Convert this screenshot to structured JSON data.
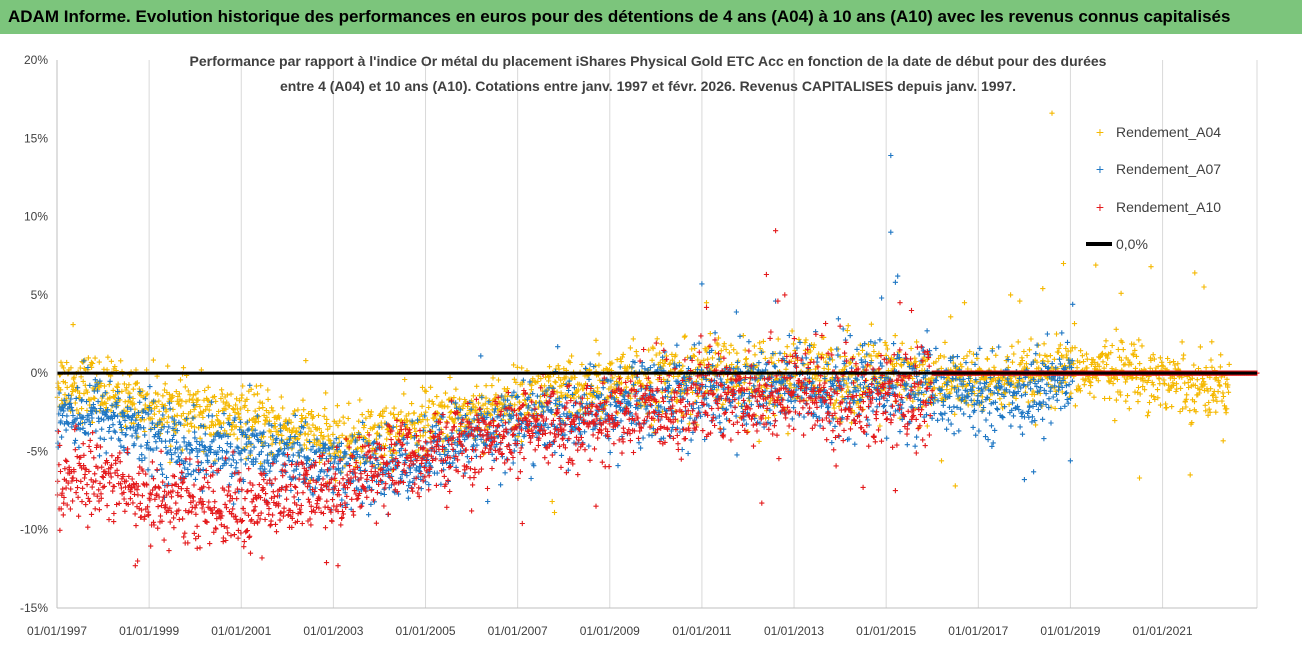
{
  "banner": {
    "text": "ADAM Informe. Evolution historique des performances en euros pour des détentions de 4 ans (A04) à 10 ans (A10) avec les revenus connus capitalisés"
  },
  "colors": {
    "banner_bg": "#7cc57c",
    "A04": "#f5b800",
    "A07": "#1f77c4",
    "A10": "#e41a1c",
    "zero_line": "#000000",
    "grid": "#d9d9d9"
  },
  "chart_data": {
    "type": "scatter",
    "title_lines": [
      "Performance par rapport à l'indice Or métal  du placement iShares Physical Gold ETC Acc en fonction de la date de début pour des durées",
      "entre 4 (A04) et 10 ans (A10). Cotations entre janv. 1997 et févr. 2026. Revenus CAPITALISES depuis janv. 1997."
    ],
    "xlabel": "",
    "ylabel": "",
    "xlim": [
      1997.0,
      2023.05
    ],
    "ylim": [
      -15,
      20
    ],
    "y_ticks": [
      20,
      15,
      10,
      5,
      0,
      -5,
      -10,
      -15
    ],
    "y_tick_labels": [
      "20%",
      "15%",
      "10%",
      "5%",
      "0%",
      "-5%",
      "-10%",
      "-15%"
    ],
    "x_ticks": [
      1997,
      1999,
      2001,
      2003,
      2005,
      2007,
      2009,
      2011,
      2013,
      2015,
      2017,
      2019,
      2021
    ],
    "x_tick_labels": [
      "01/01/1997",
      "01/01/1999",
      "01/01/2001",
      "01/01/2003",
      "01/01/2005",
      "01/01/2007",
      "01/01/2009",
      "01/01/2011",
      "01/01/2013",
      "01/01/2015",
      "01/01/2017",
      "01/01/2019",
      "01/01/2021"
    ],
    "grid": "vertical",
    "legend_position": "right",
    "legend": [
      "Rendement_A04",
      "Rendement_A07",
      "Rendement_A10",
      "0,0%"
    ],
    "series": [
      {
        "name": "Rendement_A04",
        "color": "#f5b800",
        "trend": [
          [
            1997.0,
            -0.5
          ],
          [
            1998.0,
            -1.0
          ],
          [
            1999.0,
            -2.0
          ],
          [
            2000.0,
            -2.5
          ],
          [
            2001.0,
            -3.0
          ],
          [
            2002.0,
            -3.5
          ],
          [
            2003.0,
            -4.5
          ],
          [
            2004.0,
            -4.0
          ],
          [
            2005.0,
            -3.2
          ],
          [
            2006.0,
            -2.5
          ],
          [
            2007.0,
            -1.8
          ],
          [
            2008.0,
            -1.2
          ],
          [
            2009.0,
            -0.8
          ],
          [
            2010.0,
            -0.5
          ],
          [
            2011.0,
            -0.3
          ],
          [
            2012.0,
            -0.2
          ],
          [
            2013.0,
            -0.2
          ],
          [
            2014.0,
            -0.2
          ],
          [
            2015.0,
            -0.3
          ],
          [
            2016.0,
            -0.5
          ],
          [
            2017.0,
            -0.6
          ],
          [
            2018.0,
            -0.4
          ],
          [
            2019.0,
            0.0
          ],
          [
            2020.0,
            0.3
          ],
          [
            2021.0,
            -0.3
          ],
          [
            2022.0,
            -0.8
          ],
          [
            2022.45,
            -1.0
          ]
        ],
        "outliers": [
          [
            1997.35,
            3.1
          ],
          [
            2002.4,
            0.8
          ],
          [
            2008.7,
            2.1
          ],
          [
            2011.1,
            4.5
          ],
          [
            2016.4,
            3.6
          ],
          [
            2016.7,
            4.5
          ],
          [
            2017.7,
            5.0
          ],
          [
            2017.9,
            4.6
          ],
          [
            2018.4,
            5.4
          ],
          [
            2018.6,
            16.6
          ],
          [
            2018.85,
            7.0
          ],
          [
            2019.55,
            6.9
          ],
          [
            2020.1,
            5.1
          ],
          [
            2020.75,
            6.8
          ],
          [
            2021.7,
            6.4
          ],
          [
            2021.9,
            5.5
          ],
          [
            2020.5,
            -6.7
          ],
          [
            2021.6,
            -6.5
          ],
          [
            2016.2,
            -5.6
          ],
          [
            2016.5,
            -7.2
          ],
          [
            2007.75,
            -8.2
          ],
          [
            2007.8,
            -8.9
          ]
        ]
      },
      {
        "name": "Rendement_A07",
        "color": "#1f77c4",
        "trend": [
          [
            1997.0,
            -2.5
          ],
          [
            1998.0,
            -2.5
          ],
          [
            1999.0,
            -4.0
          ],
          [
            2000.0,
            -5.0
          ],
          [
            2001.0,
            -5.0
          ],
          [
            2002.0,
            -5.3
          ],
          [
            2003.0,
            -6.0
          ],
          [
            2004.0,
            -6.2
          ],
          [
            2005.0,
            -5.5
          ],
          [
            2006.0,
            -3.8
          ],
          [
            2007.0,
            -3.2
          ],
          [
            2008.0,
            -2.8
          ],
          [
            2009.0,
            -2.3
          ],
          [
            2010.0,
            -1.5
          ],
          [
            2011.0,
            -1.2
          ],
          [
            2012.0,
            -1.0
          ],
          [
            2013.0,
            -1.0
          ],
          [
            2014.0,
            -1.0
          ],
          [
            2015.0,
            -1.0
          ],
          [
            2016.0,
            -1.2
          ],
          [
            2017.0,
            -1.5
          ],
          [
            2018.0,
            -1.2
          ],
          [
            2018.9,
            -0.5
          ],
          [
            2019.05,
            0.0
          ]
        ],
        "outliers": [
          [
            2011.0,
            5.7
          ],
          [
            2015.1,
            13.9
          ],
          [
            2015.1,
            9.0
          ],
          [
            2015.25,
            6.2
          ],
          [
            2015.2,
            5.8
          ],
          [
            2014.9,
            4.8
          ],
          [
            2012.6,
            4.6
          ],
          [
            2019.05,
            4.4
          ],
          [
            2006.2,
            1.1
          ],
          [
            2018.0,
            -6.8
          ],
          [
            2018.2,
            -6.3
          ],
          [
            2019.0,
            -5.6
          ],
          [
            2006.35,
            -8.2
          ],
          [
            2008.1,
            -6.2
          ]
        ]
      },
      {
        "name": "Rendement_A10",
        "color": "#e41a1c",
        "trend": [
          [
            1997.0,
            -7.0
          ],
          [
            1998.0,
            -6.5
          ],
          [
            1999.0,
            -8.0
          ],
          [
            2000.0,
            -8.3
          ],
          [
            2001.0,
            -8.6
          ],
          [
            2002.0,
            -8.0
          ],
          [
            2003.0,
            -7.5
          ],
          [
            2004.0,
            -5.8
          ],
          [
            2005.0,
            -5.3
          ],
          [
            2006.0,
            -4.5
          ],
          [
            2007.0,
            -3.8
          ],
          [
            2008.0,
            -3.4
          ],
          [
            2009.0,
            -2.9
          ],
          [
            2010.0,
            -2.0
          ],
          [
            2011.0,
            -1.7
          ],
          [
            2012.0,
            -1.3
          ],
          [
            2013.0,
            -1.2
          ],
          [
            2014.0,
            -1.6
          ],
          [
            2015.0,
            -1.8
          ],
          [
            2015.95,
            -1.5
          ],
          [
            2016.0,
            0.0
          ]
        ],
        "outliers": [
          [
            2012.6,
            9.1
          ],
          [
            2012.4,
            6.3
          ],
          [
            2012.8,
            5.0
          ],
          [
            2012.65,
            4.6
          ],
          [
            2011.1,
            4.2
          ],
          [
            2014.0,
            3.0
          ],
          [
            2015.3,
            4.5
          ],
          [
            2015.55,
            4.0
          ],
          [
            1998.7,
            -12.3
          ],
          [
            1998.75,
            -12.0
          ],
          [
            2001.2,
            -11.5
          ],
          [
            2001.45,
            -11.8
          ],
          [
            2003.1,
            -12.3
          ],
          [
            2002.85,
            -12.1
          ],
          [
            2006.0,
            -8.8
          ],
          [
            2007.1,
            -9.6
          ],
          [
            2012.3,
            -8.3
          ],
          [
            2014.5,
            -7.3
          ],
          [
            2015.2,
            -7.5
          ],
          [
            2008.7,
            -8.5
          ]
        ],
        "flat_zero": [
          2016.0,
          2023.05
        ]
      },
      {
        "name": "0,0%",
        "color": "#000000",
        "type": "line",
        "x": [
          1997.0,
          2023.05
        ],
        "values": [
          0,
          0
        ]
      }
    ]
  }
}
